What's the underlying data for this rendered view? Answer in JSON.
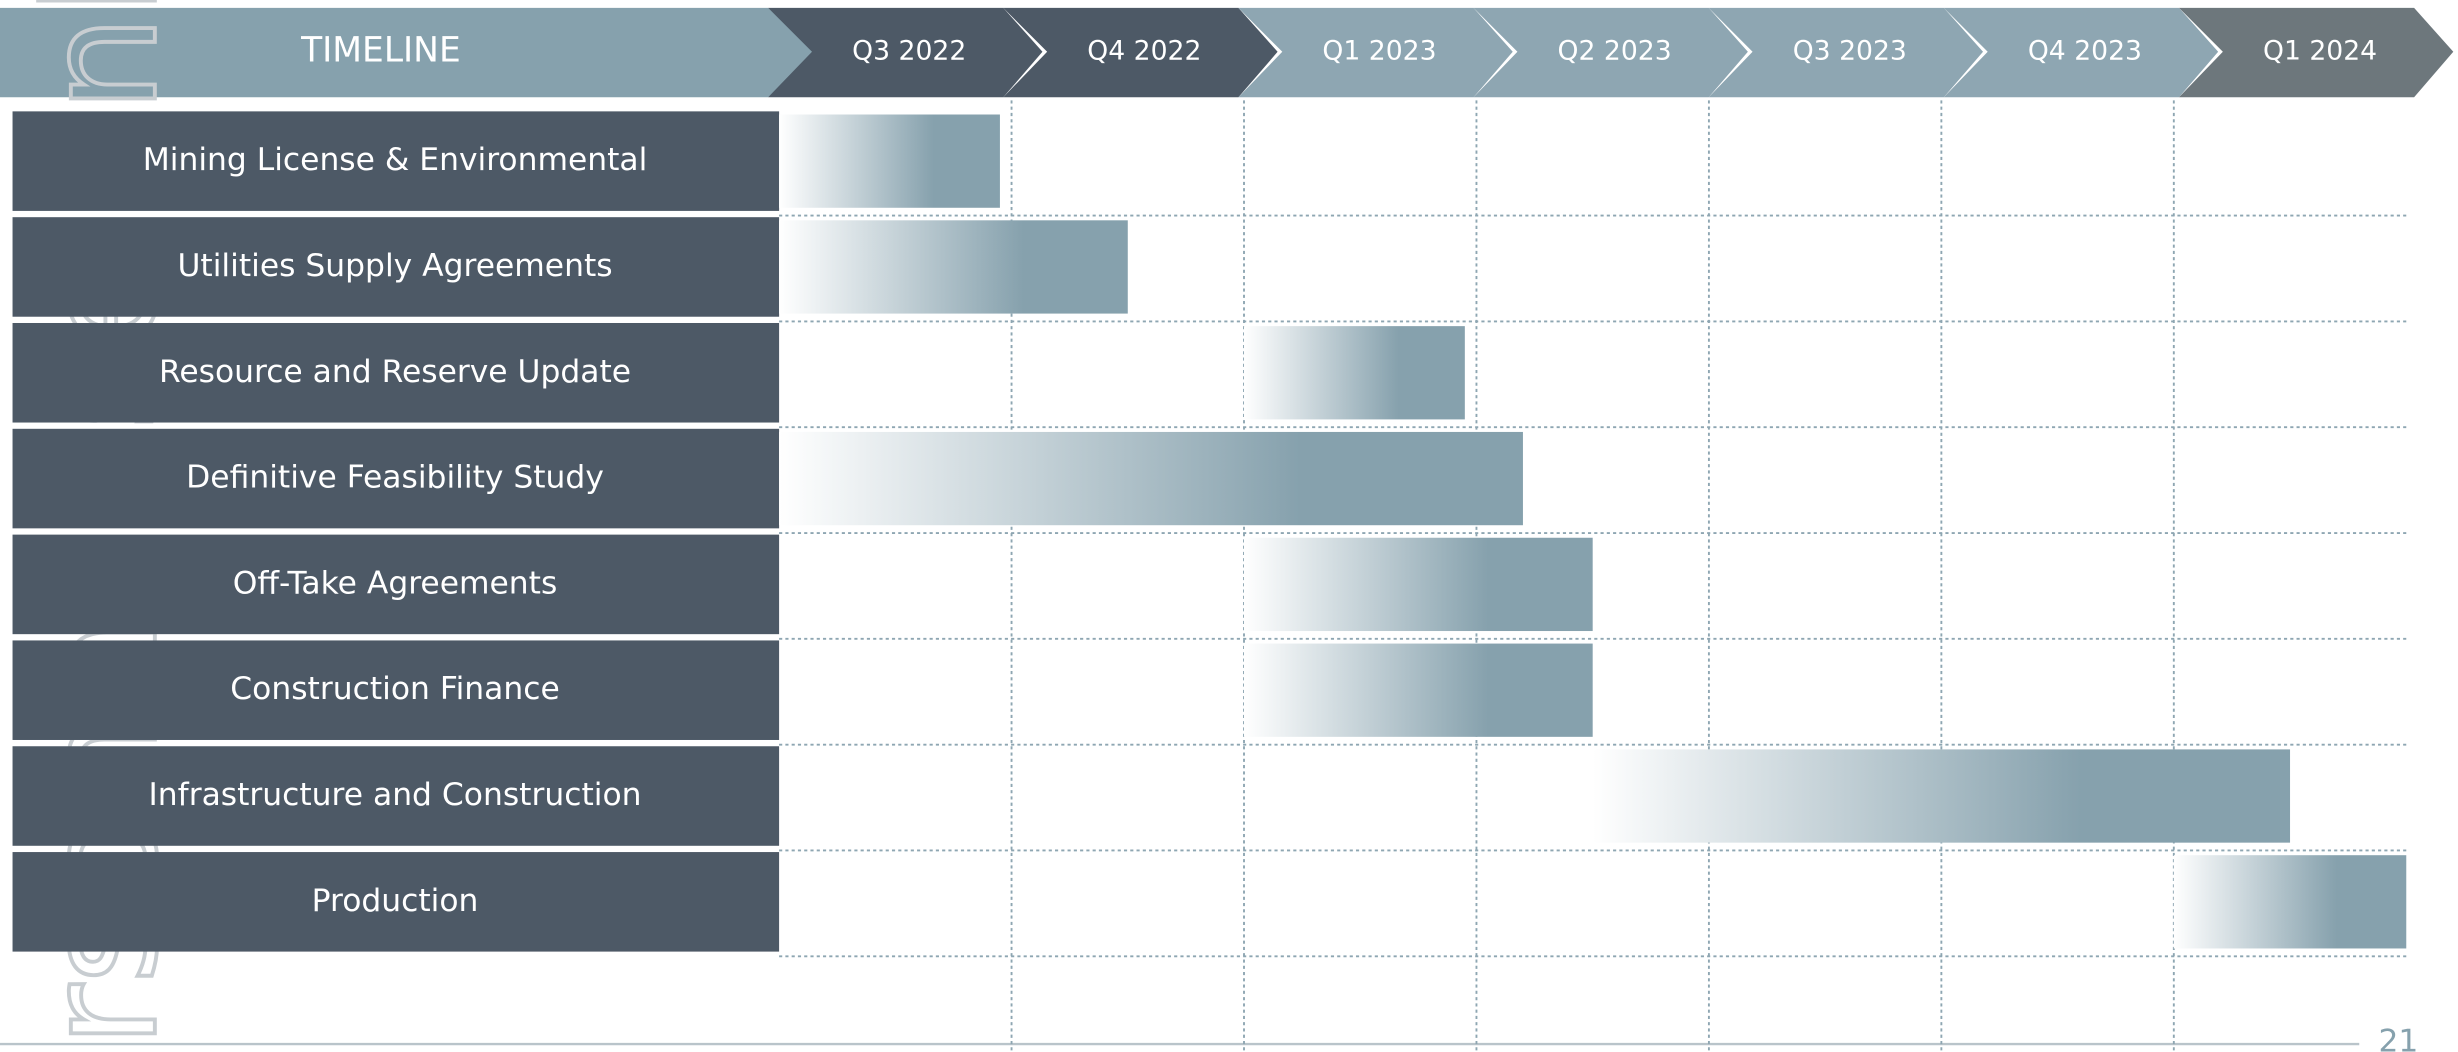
{
  "chart_data": {
    "type": "gantt",
    "title": "TIMELINE",
    "periods": [
      "Q3 2022",
      "Q4 2022",
      "Q1 2023",
      "Q2 2023",
      "Q3 2023",
      "Q4 2023",
      "Q1 2024"
    ],
    "period_colors": [
      "#4d5966",
      "#4d5966",
      "#8ea6b2",
      "#8ea6b2",
      "#8ea6b2",
      "#8ea6b2",
      "#6d777c"
    ],
    "categories": [
      "Mining License & Environmental",
      "Utilities Supply Agreements",
      "Resource and Reserve Update",
      "Definitive Feasibility Study",
      "Off-Take Agreements",
      "Construction Finance",
      "Infrastructure and Construction",
      "Production"
    ],
    "start": [
      0,
      0,
      2,
      0,
      2,
      2,
      3.5,
      6
    ],
    "end": [
      0.95,
      1.5,
      2.95,
      3.2,
      3.5,
      3.5,
      6.5,
      7
    ],
    "xlim": [
      0,
      7
    ],
    "xticks": [
      1,
      2,
      3,
      4,
      5,
      6
    ],
    "color": "#86a1ad",
    "label_color": "#4d5966",
    "grid": true,
    "watermark": "rsonal use only",
    "page_number": "21"
  }
}
